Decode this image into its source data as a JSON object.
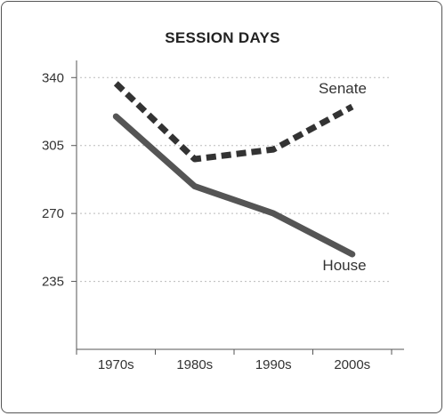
{
  "chart_data": {
    "type": "line",
    "title": "SESSION DAYS",
    "xlabel": "",
    "ylabel": "",
    "categories": [
      "1970s",
      "1980s",
      "1990s",
      "2000s"
    ],
    "y_ticks": [
      235,
      270,
      305,
      340
    ],
    "ylim": [
      200,
      347
    ],
    "grid": true,
    "series": [
      {
        "name": "Senate",
        "values": [
          337,
          298,
          303,
          325
        ],
        "color": "#333333",
        "style": "dashed"
      },
      {
        "name": "House",
        "values": [
          320,
          284,
          270,
          249
        ],
        "color": "#555555",
        "style": "solid"
      }
    ]
  }
}
